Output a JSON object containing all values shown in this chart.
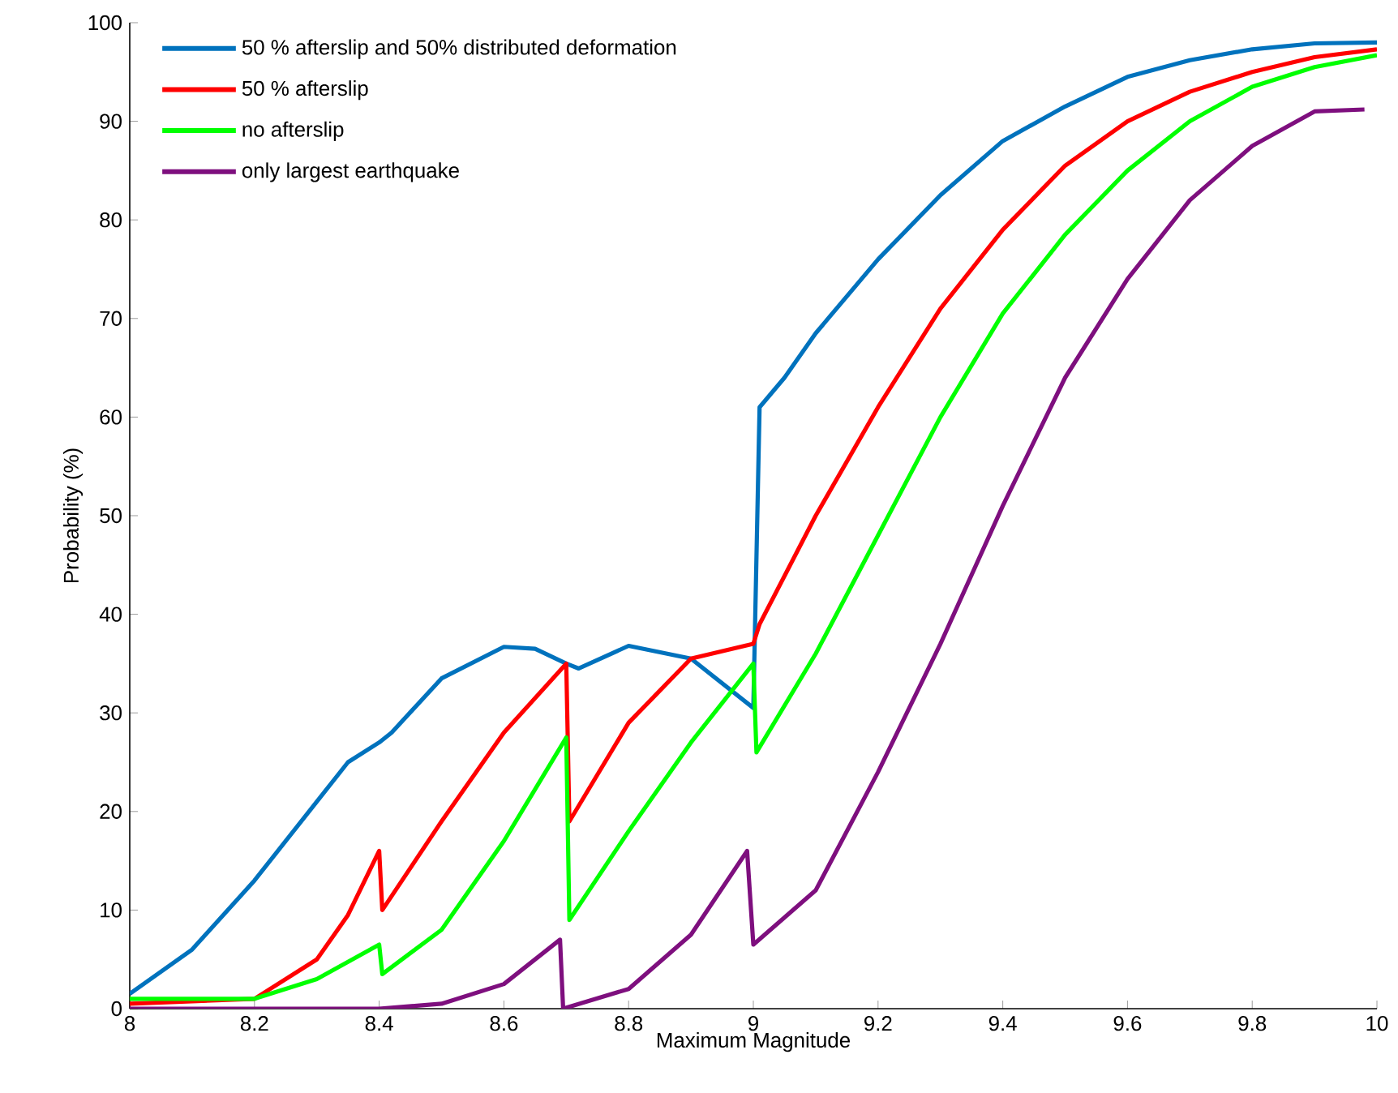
{
  "chart_data": {
    "type": "line",
    "xlabel": "Maximum Magnitude",
    "ylabel": "Probability (%)",
    "xlim": [
      8,
      10
    ],
    "ylim": [
      0,
      100
    ],
    "xticks": [
      8,
      8.2,
      8.4,
      8.6,
      8.8,
      9,
      9.2,
      9.4,
      9.6,
      9.8,
      10
    ],
    "yticks": [
      0,
      10,
      20,
      30,
      40,
      50,
      60,
      70,
      80,
      90,
      100
    ],
    "legend": "top left",
    "grid": false,
    "marker": "none",
    "line_style": "solid",
    "series": [
      {
        "name": "50 % afterslip and 50% distributed deformation",
        "color": "#0072bd",
        "x": [
          8.0,
          8.1,
          8.2,
          8.3,
          8.35,
          8.4,
          8.42,
          8.5,
          8.6,
          8.65,
          8.7,
          8.72,
          8.8,
          8.9,
          9.0,
          9.01,
          9.05,
          9.1,
          9.2,
          9.3,
          9.4,
          9.5,
          9.6,
          9.7,
          9.8,
          9.9,
          10.0
        ],
        "values": [
          1.5,
          6,
          13,
          21,
          25,
          27,
          28,
          33.5,
          36.7,
          36.5,
          35,
          34.5,
          36.8,
          35.5,
          30.5,
          61,
          64,
          68.5,
          76,
          82.5,
          88,
          91.5,
          94.5,
          96.2,
          97.3,
          97.9,
          98
        ]
      },
      {
        "name": "50 % afterslip",
        "color": "#ff0000",
        "x": [
          8.0,
          8.2,
          8.3,
          8.35,
          8.4,
          8.405,
          8.5,
          8.6,
          8.7,
          8.705,
          8.8,
          8.9,
          9.0,
          9.01,
          9.1,
          9.2,
          9.3,
          9.4,
          9.5,
          9.6,
          9.7,
          9.8,
          9.9,
          10.0
        ],
        "values": [
          0.5,
          1,
          5,
          9.5,
          16,
          10,
          19,
          28,
          35,
          19,
          29,
          35.5,
          37,
          39,
          50,
          61,
          71,
          79,
          85.5,
          90,
          93,
          95,
          96.5,
          97.3
        ]
      },
      {
        "name": "no afterslip",
        "color": "#00ff00",
        "x": [
          8.0,
          8.2,
          8.3,
          8.4,
          8.405,
          8.5,
          8.6,
          8.7,
          8.705,
          8.8,
          8.9,
          9.0,
          9.005,
          9.1,
          9.2,
          9.3,
          9.4,
          9.5,
          9.6,
          9.7,
          9.8,
          9.9,
          10.0
        ],
        "values": [
          1,
          1,
          3,
          6.5,
          3.5,
          8,
          17,
          27.5,
          9,
          18,
          27,
          35,
          26,
          36,
          48,
          60,
          70.5,
          78.5,
          85,
          90,
          93.5,
          95.5,
          96.7
        ]
      },
      {
        "name": "only largest earthquake",
        "color": "#7e0f7e",
        "x": [
          8.0,
          8.4,
          8.5,
          8.6,
          8.69,
          8.695,
          8.8,
          8.9,
          8.99,
          9.0,
          9.1,
          9.2,
          9.3,
          9.4,
          9.5,
          9.6,
          9.7,
          9.8,
          9.9,
          9.98
        ],
        "values": [
          0,
          0,
          0.5,
          2.5,
          7,
          0,
          2,
          7.5,
          16,
          6.5,
          12,
          24,
          37,
          51,
          64,
          74,
          82,
          87.5,
          91,
          91.2
        ]
      }
    ]
  }
}
